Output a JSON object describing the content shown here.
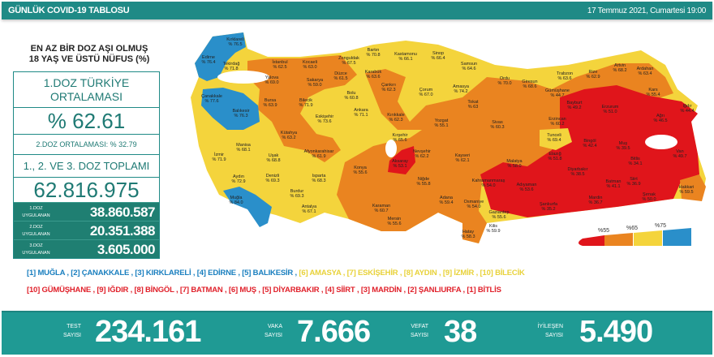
{
  "header": {
    "title": "GÜNLÜK COVID-19 TABLOSU",
    "date": "17 Temmuz 2021, Cumartesi 19:00"
  },
  "panel": {
    "title_line1": "EN AZ BİR DOZ AŞI OLMUŞ",
    "title_line2": "18 YAŞ VE ÜSTÜ NÜFUS (%)",
    "avg_label_1": "1.DOZ TÜRKİYE",
    "avg_label_2": "ORTALAMASI",
    "avg_value": "% 62.61",
    "dose2_avg": "2.DOZ ORTALAMASI: % 32.79",
    "total_label": "1., 2. VE 3. DOZ TOPLAMI",
    "total_value": "62.816.975",
    "doses": [
      {
        "l1": "1.DOZ",
        "l2": "UYGULANAN",
        "value": "38.860.587"
      },
      {
        "l1": "2.DOZ",
        "l2": "UYGULANAN",
        "value": "20.351.388"
      },
      {
        "l1": "3.DOZ",
        "l2": "UYGULANAN",
        "value": "3.605.000"
      }
    ]
  },
  "legend": {
    "ticks": [
      "%55",
      "%65",
      "%75"
    ],
    "colors": [
      "#e0151b",
      "#ea8420",
      "#f4d43c",
      "#2a8fca"
    ]
  },
  "provinces": [
    [
      "Edirne",
      "% 76.4"
    ],
    [
      "Kırklareli",
      "% 76.5"
    ],
    [
      "Tekirdağ",
      "% 71.8"
    ],
    [
      "İstanbul",
      "% 62.5"
    ],
    [
      "Kocaeli",
      "% 63.0"
    ],
    [
      "Yalova",
      "% 69.0"
    ],
    [
      "Sakarya",
      "% 59.0"
    ],
    [
      "Düzce",
      "% 61.5"
    ],
    [
      "Zonguldak",
      "% 67.5"
    ],
    [
      "Bartın",
      "% 70.8"
    ],
    [
      "Karabük",
      "% 63.6"
    ],
    [
      "Kastamonu",
      "% 66.1"
    ],
    [
      "Sinop",
      "% 66.4"
    ],
    [
      "Samsun",
      "% 64.6"
    ],
    [
      "Ordu",
      "% 70.0"
    ],
    [
      "Giresun",
      "% 68.6"
    ],
    [
      "Trabzon",
      "% 63.6"
    ],
    [
      "Rize",
      "% 62.9"
    ],
    [
      "Artvin",
      "% 68.2"
    ],
    [
      "Ardahan",
      "% 63.4"
    ],
    [
      "Kars",
      "% 55.4"
    ],
    [
      "Iğdır",
      "% 44.4"
    ],
    [
      "Ağrı",
      "% 46.5"
    ],
    [
      "Erzurum",
      "% 51.0"
    ],
    [
      "Bayburt",
      "% 49.2"
    ],
    [
      "Gümüşhane",
      "% 44.7"
    ],
    [
      "Erzincan",
      "% 60.2"
    ],
    [
      "Tunceli",
      "% 69.4"
    ],
    [
      "Bingöl",
      "% 42.4"
    ],
    [
      "Muş",
      "% 39.5"
    ],
    [
      "Van",
      "% 49.7"
    ],
    [
      "Bitlis",
      "% 34.1"
    ],
    [
      "Elazığ",
      "% 51.8"
    ],
    [
      "Malatya",
      "% 58.0"
    ],
    [
      "Diyarbakır",
      "% 38.5"
    ],
    [
      "Batman",
      "% 41.1"
    ],
    [
      "Siirt",
      "% 36.9"
    ],
    [
      "Hakkari",
      "% 59.5"
    ],
    [
      "Şırnak",
      "% 50.0"
    ],
    [
      "Mardin",
      "% 36.7"
    ],
    [
      "Şanlıurfa",
      "% 35.2"
    ],
    [
      "Adıyaman",
      "% 53.6"
    ],
    [
      "Kahramanmaraş",
      "% 54.0"
    ],
    [
      "Gaziantep",
      "% 55.6"
    ],
    [
      "Kilis",
      "% 59.9"
    ],
    [
      "Osmaniye",
      "% 54.0"
    ],
    [
      "Hatay",
      "% 58.3"
    ],
    [
      "Adana",
      "% 59.4"
    ],
    [
      "Mersin",
      "% 55.6"
    ],
    [
      "Karaman",
      "% 60.7"
    ],
    [
      "Niğde",
      "% 55.8"
    ],
    [
      "Aksaray",
      "% 53.1"
    ],
    [
      "Nevşehir",
      "% 62.2"
    ],
    [
      "Kırşehir",
      "% 65.6"
    ],
    [
      "Kayseri",
      "% 62.1"
    ],
    [
      "Yozgat",
      "% 55.1"
    ],
    [
      "Kırıkkale",
      "% 62.3"
    ],
    [
      "Çorum",
      "% 67.0"
    ],
    [
      "Amasya",
      "% 74.2"
    ],
    [
      "Tokat",
      "% 63"
    ],
    [
      "Sivas",
      "% 60.3"
    ],
    [
      "Çankırı",
      "% 62.3"
    ],
    [
      "Ankara",
      "% 71.1"
    ],
    [
      "Bolu",
      "% 60.8"
    ],
    [
      "Bilecik",
      "% 71.9"
    ],
    [
      "Eskişehir",
      "% 73.6"
    ],
    [
      "Bursa",
      "% 63.9"
    ],
    [
      "Çanakkale",
      "% 77.6"
    ],
    [
      "Balıkesir",
      "% 76.3"
    ],
    [
      "Kütahya",
      "% 63.2"
    ],
    [
      "Manisa",
      "% 68.1"
    ],
    [
      "İzmir",
      "% 71.9"
    ],
    [
      "Uşak",
      "% 68.8"
    ],
    [
      "Afyonkarahisar",
      "% 61.9"
    ],
    [
      "Aydın",
      "% 72.9"
    ],
    [
      "Denizli",
      "% 69.3"
    ],
    [
      "Isparta",
      "% 68.3"
    ],
    [
      "Burdur",
      "% 69.3"
    ],
    [
      "Muğla",
      "% 84.0"
    ],
    [
      "Antalya",
      "% 67.1"
    ],
    [
      "Konya",
      "% 55.6"
    ]
  ],
  "top_list": [
    [
      "[1] MUĞLA",
      "blue"
    ],
    [
      "[2] ÇANAKKALE",
      "blue"
    ],
    [
      "[3] KIRKLARELİ",
      "blue"
    ],
    [
      "[4] EDİRNE",
      "blue"
    ],
    [
      "[5] BALIKESİR",
      "blue"
    ],
    [
      "[6] AMASYA",
      "yellow"
    ],
    [
      "[7] ESKİŞEHİR",
      "yellow"
    ],
    [
      "[8] AYDIN",
      "yellow"
    ],
    [
      "[9] İZMİR",
      "yellow"
    ],
    [
      "[10] BİLECİK",
      "yellow"
    ]
  ],
  "bottom_list": [
    "[10] GÜMÜŞHANE",
    "[9] IĞDIR",
    "[8] BİNGÖL",
    "[7] BATMAN",
    "[6] MUŞ",
    "[5] DİYARBAKIR",
    "[4] SİİRT",
    "[3] MARDİN",
    "[2] ŞANLIURFA",
    "[1] BİTLİS"
  ],
  "stats": {
    "test_l1": "TEST",
    "test_l2": "SAYISI",
    "test": "234.161",
    "case_l1": "VAKA",
    "case_l2": "SAYISI",
    "case": "7.666",
    "death_l1": "VEFAT",
    "death_l2": "SAYISI",
    "death": "38",
    "rec_l1": "İYİLEŞEN",
    "rec_l2": "SAYISI",
    "rec": "5.490"
  }
}
